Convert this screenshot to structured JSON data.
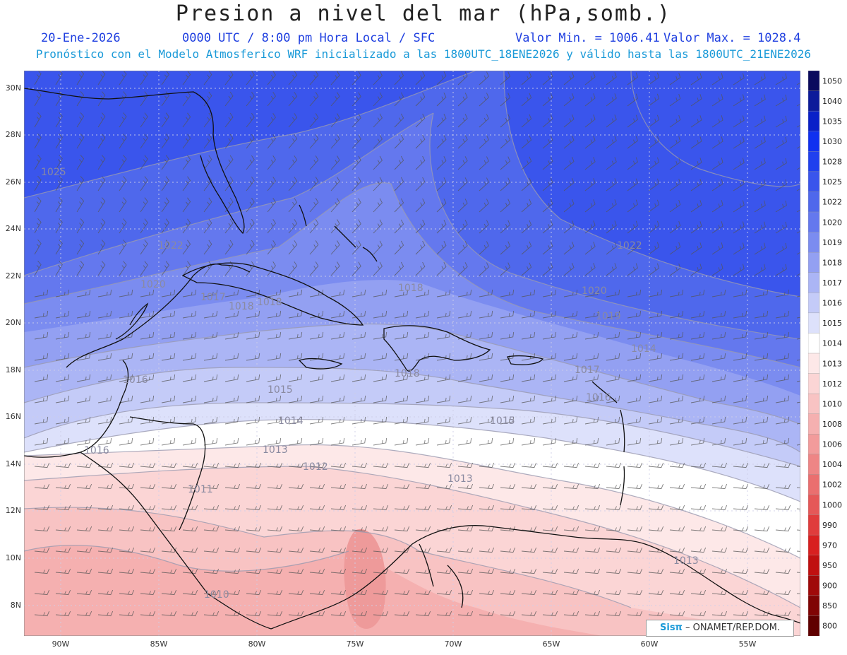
{
  "header": {
    "title": "Presion a nivel del mar (hPa,somb.)",
    "date": "20-Ene-2026",
    "time": "0000 UTC / 8:00 pm Hora Local / SFC",
    "min_label": "Valor Min. = 1006.41",
    "max_label": "Valor Max. = 1028.4",
    "subtitle": "Pronóstico con el Modelo Atmosferico WRF inicializado a las 1800UTC_18ENE2026 y válido hasta las  1800UTC_21ENE2026"
  },
  "axes": {
    "lat_labels": [
      "30N",
      "28N",
      "26N",
      "24N",
      "22N",
      "20N",
      "18N",
      "16N",
      "14N",
      "12N",
      "10N",
      "8N"
    ],
    "lon_labels": [
      "90W",
      "85W",
      "80W",
      "75W",
      "70W",
      "65W",
      "60W",
      "55W"
    ]
  },
  "colorbar": {
    "levels": [
      "1050",
      "1040",
      "1035",
      "1030",
      "1028",
      "1025",
      "1022",
      "1020",
      "1019",
      "1018",
      "1017",
      "1016",
      "1015",
      "1014",
      "1013",
      "1012",
      "1010",
      "1008",
      "1006",
      "1004",
      "1002",
      "1000",
      "990",
      "970",
      "950",
      "900",
      "850",
      "800"
    ],
    "colors": [
      "#0b0b5e",
      "#0d1b9a",
      "#0a20c8",
      "#1030f0",
      "#2040ee",
      "#3a55ec",
      "#4f68ec",
      "#6478ee",
      "#7b8cf0",
      "#93a0f2",
      "#abb5f5",
      "#c4cbf8",
      "#dde1fb",
      "#ffffff",
      "#fde8e8",
      "#fbd5d5",
      "#f8c3c3",
      "#f5b0b0",
      "#f29b9b",
      "#ee8585",
      "#ea6f6f",
      "#e55858",
      "#e03c3c",
      "#d82020",
      "#c01010",
      "#a00a0a",
      "#800505",
      "#600000"
    ]
  },
  "contour_labels": [
    "1025",
    "1022",
    "1022",
    "1020",
    "1020",
    "1019",
    "1018",
    "1018",
    "1018",
    "1017",
    "1017",
    "1016",
    "1016",
    "1015",
    "1015",
    "1014",
    "1014",
    "1013",
    "1013",
    "1013",
    "1012",
    "1011",
    "1010",
    "1016",
    "1018"
  ],
  "attribution": {
    "brand": "Sisπ",
    "org": " – ONAMET/REP.DOM."
  }
}
